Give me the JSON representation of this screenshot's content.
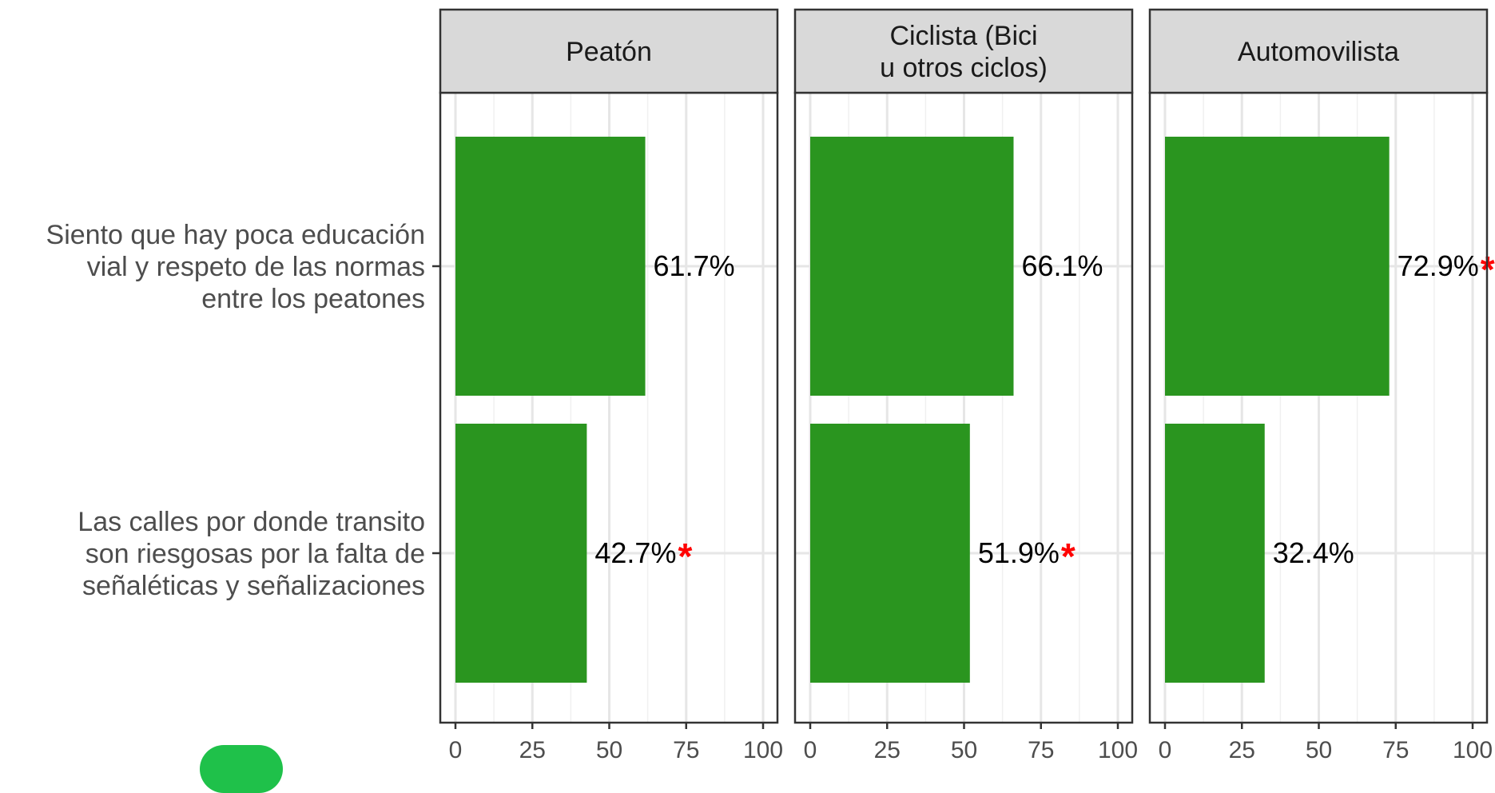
{
  "colors": {
    "bar": "#2a951f",
    "star": "#ff0000",
    "legend_chip": "#1fc14a"
  },
  "chart_data": {
    "type": "bar",
    "orientation": "horizontal",
    "facets": [
      "Peatón",
      "Ciclista (Bici\nu otros ciclos)",
      "Automovilista"
    ],
    "categories": [
      "Siento que hay poca educación\nvial y respeto de las normas\nentre los peatones",
      "Las calles por donde transito\nson riesgosas por la falta de\nseñaléticas y señalizaciones"
    ],
    "series": [
      {
        "values": [
          61.7,
          42.7
        ],
        "labels": [
          "61.7%",
          "42.7%"
        ],
        "significant": [
          false,
          true
        ]
      },
      {
        "values": [
          66.1,
          51.9
        ],
        "labels": [
          "66.1%",
          "51.9%"
        ],
        "significant": [
          false,
          true
        ]
      },
      {
        "values": [
          72.9,
          32.4
        ],
        "labels": [
          "72.9%",
          "32.4%"
        ],
        "significant": [
          true,
          false
        ]
      }
    ],
    "significance_marker": "*",
    "xlim": [
      0,
      100
    ],
    "xticks": [
      "0",
      "25",
      "50",
      "75",
      "100"
    ],
    "grid": true
  }
}
